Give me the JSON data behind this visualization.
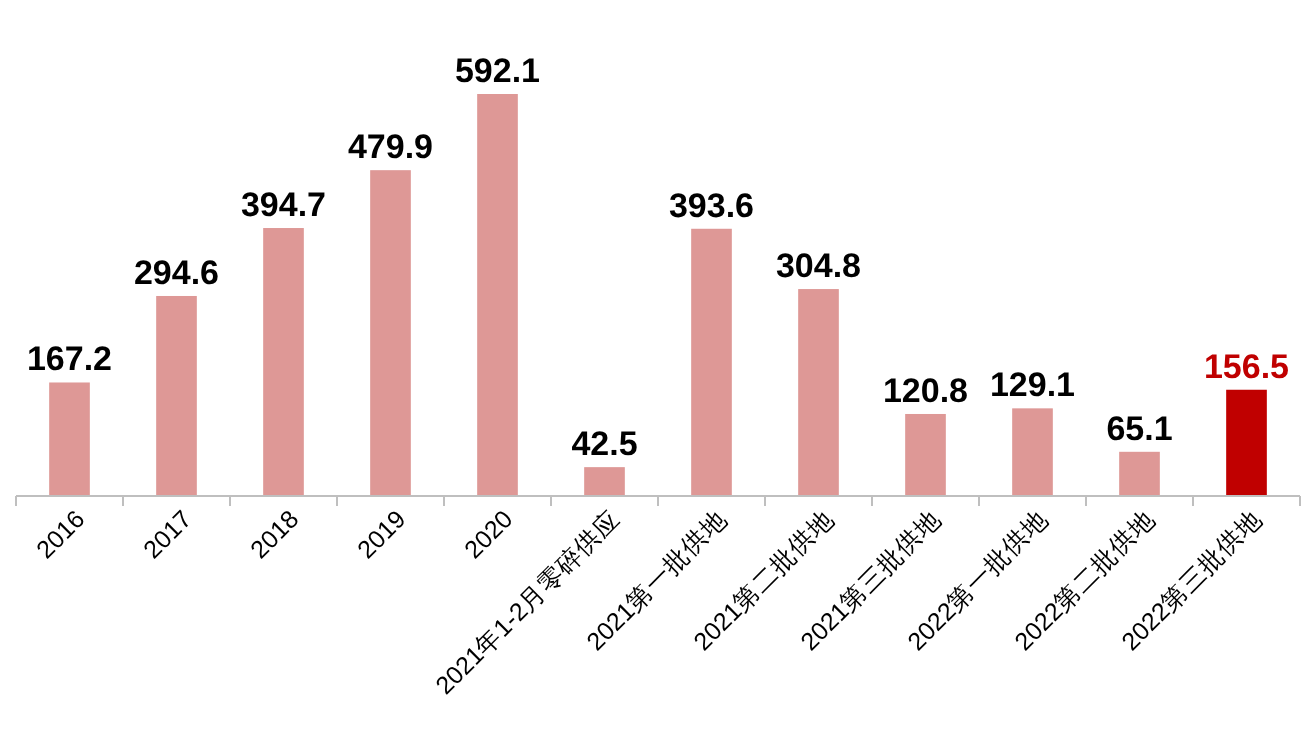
{
  "chart_data": {
    "type": "bar",
    "categories": [
      "2016",
      "2017",
      "2018",
      "2019",
      "2020",
      "2021年1-2月零碎供应",
      "2021第一批供地",
      "2021第二批供地",
      "2021第三批供地",
      "2022第一批供地",
      "2022第二批供地",
      "2022第三批供地"
    ],
    "values": [
      167.2,
      294.6,
      394.7,
      479.9,
      592.1,
      42.5,
      393.6,
      304.8,
      120.8,
      129.1,
      65.1,
      156.5
    ],
    "colors": [
      "#de9896",
      "#de9896",
      "#de9896",
      "#de9896",
      "#de9896",
      "#de9896",
      "#de9896",
      "#de9896",
      "#de9896",
      "#de9896",
      "#de9896",
      "#c00000"
    ],
    "data_labels": true
  }
}
